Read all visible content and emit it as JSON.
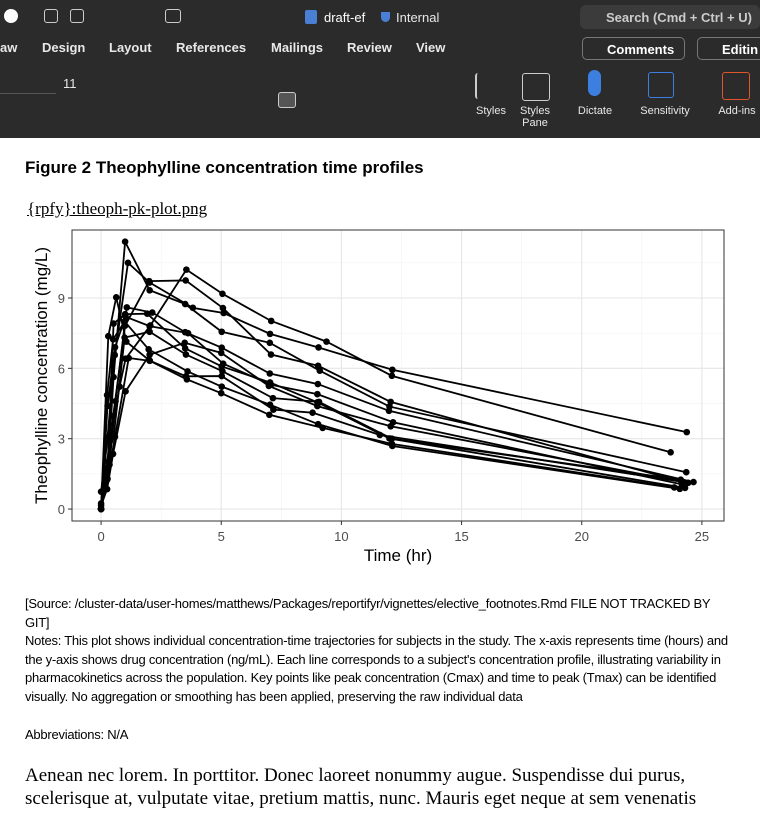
{
  "titlebar": {
    "doc_name": "draft-ef",
    "sensitivity": "Internal",
    "search": "Search (Cmd + Ctrl + U)"
  },
  "tabs": [
    "aw",
    "Design",
    "Layout",
    "References",
    "Mailings",
    "Review",
    "View"
  ],
  "buttons": {
    "comments": "Comments",
    "editing": "Editin"
  },
  "ribbon": {
    "font_size": "11",
    "styles": "Styles",
    "styles_pane": "Styles Pane",
    "dictate": "Dictate",
    "sensitivity": "Sensitivity",
    "addins": "Add-ins"
  },
  "document": {
    "figure_title": "Figure 2 Theophylline concentration time profiles",
    "image_ref": "{rpfy}:theoph-pk-plot.png",
    "source": "[Source: /cluster-data/user-homes/matthews/Packages/reportifyr/vignettes/elective_footnotes.Rmd FILE NOT TRACKED BY GIT]",
    "notes": "Notes: This plot shows individual concentration-time trajectories for subjects in the study. The x-axis represents time (hours) and the y-axis shows drug concentration (ng/mL). Each line corresponds to a subject's concentration profile, illustrating variability in pharmacokinetics across the population. Key points like peak concentration (Cmax) and time to peak (Tmax) can be identified visually. No aggregation or smoothing has been applied, preserving the raw individual data",
    "abbreviations": "Abbreviations: N/A",
    "body": "Aenean nec lorem. In porttitor. Donec laoreet nonummy augue. Suspendisse dui purus, scelerisque at, vulputate vitae, pretium mattis, nunc. Mauris eget neque at sem venenatis"
  },
  "chart_data": {
    "type": "line",
    "x_label": "Time (hr)",
    "y_label": "Theophylline concentration (mg/L)",
    "color": "#000000",
    "grid": true,
    "xlim": [
      -1.21,
      25.92
    ],
    "ylim": [
      -0.51,
      11.9
    ],
    "xticks": [
      0,
      5,
      10,
      15,
      20,
      25
    ],
    "yticks": [
      0,
      3,
      6,
      9
    ],
    "x_minor_grid": [
      2.5,
      7.5,
      12.5,
      17.5,
      22.5
    ],
    "y_minor_grid": [
      1.5,
      4.5,
      7.5,
      10.5
    ],
    "series": [
      {
        "x": [
          0,
          0.25,
          0.57,
          1.12,
          2.02,
          3.82,
          5.1,
          7.03,
          9.05,
          12.12,
          24.37
        ],
        "values": [
          0.74,
          2.84,
          6.57,
          10.5,
          9.66,
          8.58,
          8.36,
          7.47,
          6.89,
          5.94,
          3.28
        ]
      },
      {
        "x": [
          0,
          0.27,
          0.52,
          1,
          1.92,
          3.5,
          5.02,
          7.03,
          9,
          12,
          24.3
        ],
        "values": [
          0,
          1.72,
          7.91,
          8.31,
          8.33,
          6.85,
          6.08,
          5.4,
          4.55,
          3.01,
          0.9
        ]
      },
      {
        "x": [
          0,
          0.27,
          0.58,
          1.02,
          2.02,
          3.62,
          5.08,
          7.07,
          9,
          12.15,
          24.17
        ],
        "values": [
          0,
          4.4,
          6.9,
          8.2,
          7.8,
          7.5,
          6.2,
          5.3,
          4.9,
          3.7,
          1.05
        ]
      },
      {
        "x": [
          0,
          0.35,
          0.6,
          1.07,
          2.13,
          3.5,
          5.02,
          7.02,
          9.02,
          11.98,
          24.65
        ],
        "values": [
          0,
          1.89,
          4.6,
          8.6,
          8.38,
          7.54,
          6.88,
          5.78,
          5.33,
          4.19,
          1.15
        ]
      },
      {
        "x": [
          0,
          0.3,
          0.52,
          1,
          2.02,
          3.5,
          5.02,
          7.02,
          9.1,
          12,
          24.35
        ],
        "values": [
          0,
          2.02,
          5.63,
          11.4,
          9.33,
          8.74,
          7.56,
          7.09,
          5.9,
          4.37,
          1.57
        ]
      },
      {
        "x": [
          0,
          0.27,
          0.58,
          1.15,
          2.03,
          3.57,
          5,
          7,
          9.22,
          12.1,
          23.85
        ],
        "values": [
          0,
          1.29,
          3.08,
          6.44,
          6.32,
          5.53,
          4.94,
          4.02,
          3.46,
          2.78,
          0.92
        ]
      },
      {
        "x": [
          0,
          0.25,
          0.5,
          1.02,
          2.02,
          3.48,
          5,
          6.98,
          9,
          12.05,
          24.22
        ],
        "values": [
          0.15,
          0.85,
          2.35,
          5.02,
          6.58,
          7.09,
          6.66,
          5.25,
          4.39,
          3.53,
          1.15
        ]
      },
      {
        "x": [
          0,
          0.25,
          0.52,
          0.98,
          2.02,
          3.53,
          5.05,
          7.15,
          9.07,
          12.1,
          24.12
        ],
        "values": [
          0,
          3.05,
          3.05,
          7.31,
          7.56,
          6.59,
          5.88,
          4.73,
          4.57,
          3,
          1.25
        ]
      },
      {
        "x": [
          0,
          0.3,
          0.63,
          1.05,
          2.02,
          3.53,
          5.02,
          7.17,
          8.8,
          11.6,
          24.43
        ],
        "values": [
          0,
          7.37,
          9.03,
          7.14,
          6.33,
          5.66,
          5.67,
          4.24,
          4.11,
          3.16,
          1.12
        ]
      },
      {
        "x": [
          0,
          0.37,
          0.77,
          1.02,
          2.05,
          3.55,
          5.05,
          7.08,
          9.38,
          12.1,
          23.7
        ],
        "values": [
          0.24,
          2.89,
          5.22,
          6.41,
          7.83,
          10.21,
          9.18,
          8.02,
          7.14,
          5.68,
          2.42
        ]
      },
      {
        "x": [
          0,
          0.25,
          0.5,
          0.98,
          1.98,
          3.6,
          5.02,
          7.03,
          9.03,
          12.12,
          24.08
        ],
        "values": [
          0,
          4.86,
          7.24,
          8,
          6.81,
          5.87,
          5.22,
          4.45,
          3.62,
          2.69,
          0.86
        ]
      },
      {
        "x": [
          0,
          0.25,
          0.5,
          1,
          2,
          3.52,
          5.07,
          7.07,
          9.03,
          12.05,
          24.15
        ],
        "values": [
          0,
          1.25,
          3.96,
          7.82,
          9.72,
          9.75,
          8.57,
          6.59,
          6.11,
          4.57,
          1.17
        ]
      }
    ]
  }
}
